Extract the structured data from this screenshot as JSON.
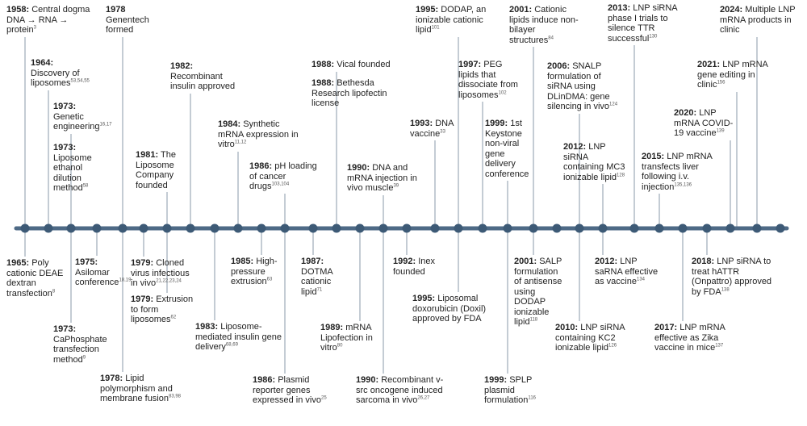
{
  "colors": {
    "axis": "#4e6a86",
    "dot": "#3d5a76",
    "connector": "#8a9aa9",
    "text": "#222222"
  },
  "events": [
    {
      "year": "1958:",
      "text": "Central dogma DNA → RNA → protein",
      "ref": "3"
    },
    {
      "year": "1964:",
      "text": "Discovery of liposomes",
      "ref": "53,54,55"
    },
    {
      "year": "1973:",
      "text": "Genetic engineering",
      "ref": "16,17"
    },
    {
      "year": "1973:",
      "text": "Liposome ethanol dilution method",
      "ref": "58"
    },
    {
      "year": "1978",
      "text": "Genentech formed",
      "ref": ""
    },
    {
      "year": "1982:",
      "text": "Recombinant insulin approved",
      "ref": ""
    },
    {
      "year": "1981:",
      "text": "The Liposome Company founded",
      "ref": ""
    },
    {
      "year": "1984:",
      "text": "Synthetic mRNA expression in vitro",
      "ref": "11,12"
    },
    {
      "year": "1986:",
      "text": "pH loading of cancer drugs",
      "ref": "103,104"
    },
    {
      "year": "1988:",
      "text": "Vical founded",
      "ref": ""
    },
    {
      "year": "1988:",
      "text": "Bethesda Research lipofectin license",
      "ref": ""
    },
    {
      "year": "1990:",
      "text": "DNA and mRNA injection in vivo muscle",
      "ref": "39"
    },
    {
      "year": "1993:",
      "text": "DNA vaccine",
      "ref": "33"
    },
    {
      "year": "1995:",
      "text": "DODAP, an ionizable cationic lipid",
      "ref": "101"
    },
    {
      "year": "1997:",
      "text": "PEG lipids that dissociate from liposomes",
      "ref": "102"
    },
    {
      "year": "1999:",
      "text": "1st Keystone non-viral gene delivery conference",
      "ref": ""
    },
    {
      "year": "2001:",
      "text": "Cationic lipids induce non-bilayer structures",
      "ref": "84"
    },
    {
      "year": "2006:",
      "text": "SNALP formulation of siRNA using DLinDMA: gene silencing in vivo",
      "ref": "124"
    },
    {
      "year": "2012:",
      "text": "LNP siRNA containing MC3 ionizable lipid",
      "ref": "128"
    },
    {
      "year": "2013:",
      "text": "LNP siRNA phase I trials to silence TTR successful",
      "ref": "130"
    },
    {
      "year": "2015:",
      "text": "LNP mRNA transfects liver following i.v. injection",
      "ref": "135,136"
    },
    {
      "year": "2020:",
      "text": "LNP mRNA COVID-19 vaccine",
      "ref": "139"
    },
    {
      "year": "2021:",
      "text": "LNP mRNA gene editing in clinic",
      "ref": "156"
    },
    {
      "year": "2024:",
      "text": "Multiple LNP mRNA products in clinic",
      "ref": ""
    },
    {
      "year": "1965:",
      "text": "Poly cationic DEAE dextran transfection",
      "ref": "8"
    },
    {
      "year": "1975:",
      "text": "Asilomar conference",
      "ref": "18,19"
    },
    {
      "year": "1973:",
      "text": "CaPhosphate transfection method",
      "ref": "9"
    },
    {
      "year": "1978:",
      "text": "Lipid polymorphism and membrane fusion",
      "ref": "83,98"
    },
    {
      "year": "1979:",
      "text": "Cloned virus infectious in vivo",
      "ref": "21,22,23,24"
    },
    {
      "year": "1979:",
      "text": "Extrusion to form liposomes",
      "ref": "62"
    },
    {
      "year": "1983:",
      "text": "Liposome-mediated insulin gene delivery",
      "ref": "68,69"
    },
    {
      "year": "1985:",
      "text": "High-pressure extrusion",
      "ref": "63"
    },
    {
      "year": "1986:",
      "text": "Plasmid reporter genes expressed in vivo",
      "ref": "25"
    },
    {
      "year": "1987:",
      "text": "DOTMA cationic lipid",
      "ref": "71"
    },
    {
      "year": "1989:",
      "text": "mRNA Lipofection in vitro",
      "ref": "80"
    },
    {
      "year": "1990:",
      "text": "Recombinant v-src oncogene induced sarcoma in vivo",
      "ref": "26,27"
    },
    {
      "year": "1992:",
      "text": "Inex founded",
      "ref": ""
    },
    {
      "year": "1995:",
      "text": "Liposomal doxorubicin (Doxil) approved by FDA",
      "ref": ""
    },
    {
      "year": "2001:",
      "text": "SALP formulation of antisense using DODAP ionizable lipid",
      "ref": "118"
    },
    {
      "year": "1999:",
      "text": "SPLP plasmid formulation",
      "ref": "116"
    },
    {
      "year": "2012:",
      "text": "LNP saRNA effective as vaccine",
      "ref": "134"
    },
    {
      "year": "2010:",
      "text": "LNP siRNA containing KC2 ionizable lipid",
      "ref": "126"
    },
    {
      "year": "2018:",
      "text": "LNP siRNA to treat hATTR (Onpattro) approved by FDA",
      "ref": "138"
    },
    {
      "year": "2017:",
      "text": "LNP mRNA effective as Zika vaccine in mice",
      "ref": "137"
    }
  ]
}
